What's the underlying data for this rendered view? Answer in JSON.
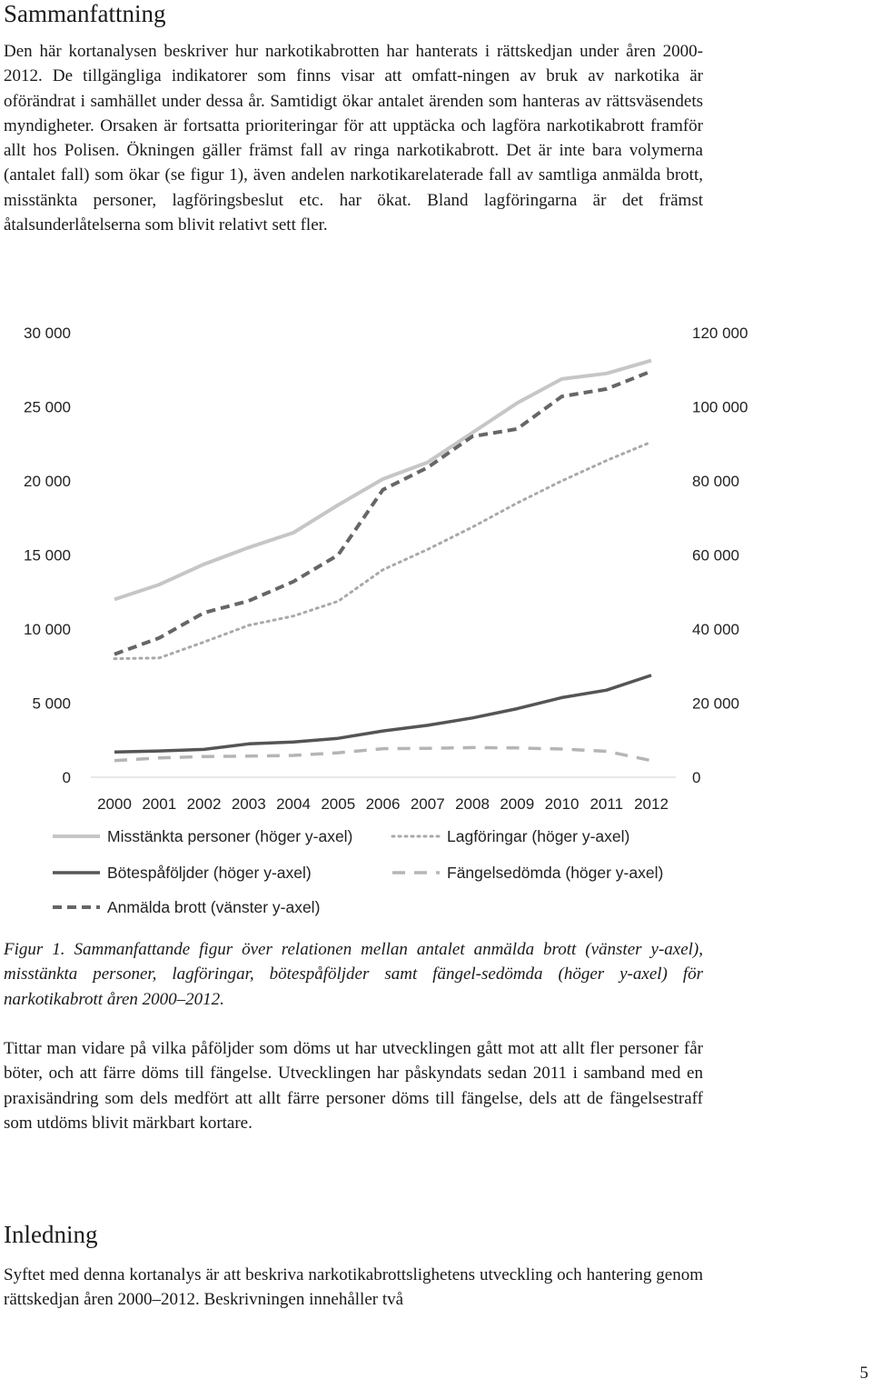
{
  "summary": {
    "heading": "Sammanfattning",
    "paragraph": "Den här kortanalysen beskriver hur narkotikabrotten har hanterats i rättskedjan under åren 2000-2012. De tillgängliga indikatorer som finns visar att omfatt-ningen av bruk av narkotika är oförändrat i samhället under dessa år. Samtidigt ökar antalet ärenden som hanteras av rättsväsendets myndigheter. Orsaken är fortsatta prioriteringar för att upptäcka och lagföra narkotikabrott framför allt hos Polisen. Ökningen gäller främst fall av ringa narkotikabrott. Det är inte bara volymerna (antalet fall) som ökar (se figur 1), även andelen narkotikarelaterade fall av samtliga anmälda brott, misstänkta personer, lagföringsbeslut etc. har ökat. Bland lagföringarna är det främst åtalsunderlåtelserna som blivit relativt sett fler."
  },
  "chart_data": {
    "type": "line",
    "categories": [
      "2000",
      "2001",
      "2002",
      "2003",
      "2004",
      "2005",
      "2006",
      "2007",
      "2008",
      "2009",
      "2010",
      "2011",
      "2012"
    ],
    "y_left": {
      "min": 0,
      "max": 30000,
      "ticks": [
        "0",
        "5 000",
        "10 000",
        "15 000",
        "20 000",
        "25 000",
        "30 000"
      ]
    },
    "y_right": {
      "min": 0,
      "max": 120000,
      "ticks": [
        "0",
        "20 000",
        "40 000",
        "60 000",
        "80 000",
        "100 000",
        "120 000"
      ]
    },
    "series": [
      {
        "name": "Misstänkta personer (höger y-axel)",
        "axis": "right",
        "style": "solid",
        "color": "#c6c6c6",
        "values": [
          48000,
          52000,
          57500,
          62000,
          66000,
          73500,
          80500,
          85000,
          93000,
          101000,
          107500,
          109000,
          112500
        ]
      },
      {
        "name": "Lagföringar (höger y-axel)",
        "axis": "right",
        "style": "dotted",
        "color": "#a9a9a9",
        "values": [
          32000,
          32200,
          36500,
          41000,
          43500,
          47500,
          56000,
          61500,
          67500,
          74000,
          80000,
          85500,
          90500
        ]
      },
      {
        "name": "Bötespåföljder (höger y-axel)",
        "axis": "right",
        "style": "solid",
        "color": "#555555",
        "values": [
          6800,
          7100,
          7500,
          9000,
          9500,
          10500,
          12500,
          14000,
          16000,
          18500,
          21500,
          23500,
          27500
        ]
      },
      {
        "name": "Fängelsedömda (höger y-axel)",
        "axis": "right",
        "style": "dashed-long",
        "color": "#b5b5b5",
        "values": [
          4500,
          5200,
          5600,
          5700,
          5900,
          6600,
          7700,
          7800,
          8000,
          7900,
          7600,
          7000,
          4500
        ]
      },
      {
        "name": "Anmälda brott (vänster y-axel)",
        "axis": "left",
        "style": "dashed",
        "color": "#666666",
        "values": [
          8300,
          9400,
          11100,
          11900,
          13200,
          15000,
          19400,
          20900,
          23000,
          23500,
          25700,
          26200,
          27400
        ]
      }
    ]
  },
  "caption": {
    "text": "Figur 1. Sammanfattande figur över relationen mellan antalet anmälda brott (vänster y-axel), misstänkta personer, lagföringar, bötespåföljder samt fängel-sedömda (höger y-axel) för narkotikabrott åren 2000–2012."
  },
  "sanctions": {
    "paragraph": "Tittar man vidare på vilka påföljder som döms ut har utvecklingen gått mot att allt fler personer får böter, och att färre döms till fängelse. Utvecklingen har påskyndats sedan 2011 i samband med en praxisändring som dels medfört att allt färre personer döms till fängelse, dels att de fängelsestraff som utdöms blivit märkbart kortare."
  },
  "intro": {
    "heading": "Inledning",
    "paragraph": "Syftet med denna kortanalys är att beskriva narkotikabrottslighetens utveckling och hantering genom rättskedjan åren 2000–2012. Beskrivningen innehåller två"
  },
  "page_number": "5"
}
